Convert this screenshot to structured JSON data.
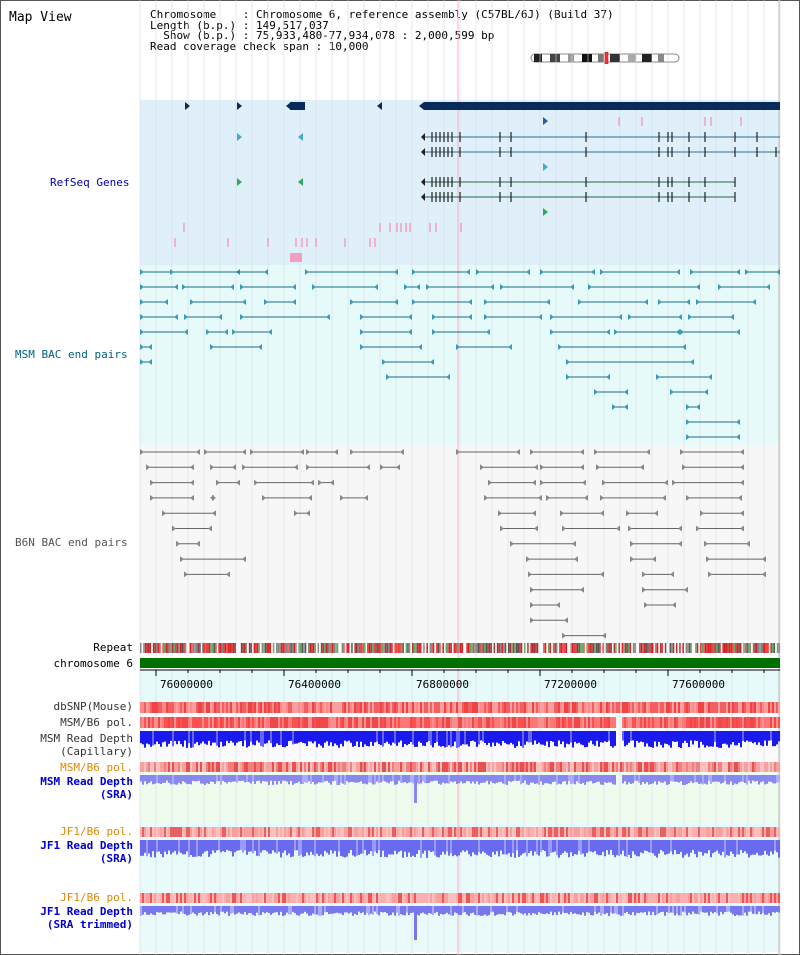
{
  "header": {
    "title": "Map View",
    "chromosome_line": "Chromosome    : Chromosome 6, reference assembly (C57BL/6J) (Build 37)",
    "length_line": "Length (b.p.) : 149,517,037",
    "show_line": "  Show (b.p.) : 75,933,480-77,934,078 : 2,000,599 bp",
    "coverage_line": "Read coverage check span : 10,000"
  },
  "tracks": {
    "refseq": "RefSeq Genes",
    "msm_bac": "MSM BAC end pairs",
    "b6n_bac": "B6N BAC end pairs",
    "repeat": "Repeat",
    "chromosome": "chromosome 6",
    "dbsnp": "dbSNP(Mouse)",
    "msm_b6_pol_1": "MSM/B6 pol.",
    "msm_depth_cap_1": "MSM Read Depth",
    "msm_depth_cap_2": "(Capillary)",
    "msm_b6_pol_2": "MSM/B6 pol.",
    "msm_depth_sra_1": "MSM Read Depth",
    "msm_depth_sra_2": "(SRA)",
    "jf1_b6_pol_1": "JF1/B6 pol.",
    "jf1_depth_sra_1": "JF1 Read Depth",
    "jf1_depth_sra_2": "(SRA)",
    "jf1_b6_pol_2": "JF1/B6 pol.",
    "jf1_depth_trim_1": "JF1 Read Depth",
    "jf1_depth_trim_2": "(SRA trimmed)"
  },
  "axis": {
    "ticks": [
      "76000000",
      "76400000",
      "76800000",
      "77200000",
      "77600000"
    ]
  },
  "colors": {
    "refseq_bg": "#dff0fa",
    "msm_bg": "#e6fafa",
    "b6n_bg": "#f7f7f7",
    "refseq_label": "#0000aa",
    "msm_label": "#006080",
    "b6n_label": "#555555",
    "orange_label": "#dd8800",
    "blue_label": "#0000cc",
    "chromosome_bar": "#007000",
    "depth_blue": "#1a1aee",
    "depth_light": "#8888ee"
  }
}
